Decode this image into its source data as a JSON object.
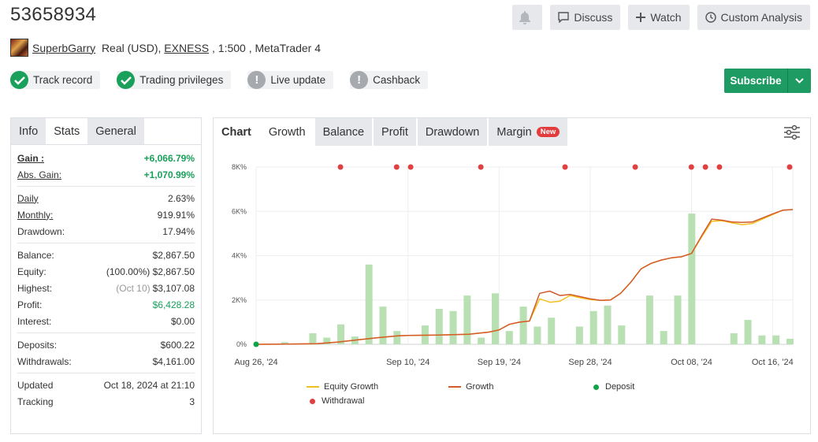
{
  "account": {
    "number": "53658934",
    "owner": "SuperbGarry",
    "type_prefix": "Real (USD), ",
    "broker": "EXNESS",
    "details": " , 1:500 , MetaTrader 4"
  },
  "top_actions": {
    "discuss": "Discuss",
    "watch": "Watch",
    "custom_analysis": "Custom Analysis"
  },
  "badges": [
    {
      "label": "Track record",
      "state": "verified"
    },
    {
      "label": "Trading privileges",
      "state": "verified"
    },
    {
      "label": "Live update",
      "state": "warning"
    },
    {
      "label": "Cashback",
      "state": "warning"
    }
  ],
  "subscribe": {
    "label": "Subscribe"
  },
  "stats_tabs": [
    "Info",
    "Stats",
    "General"
  ],
  "stats": {
    "gain": {
      "label": "Gain :",
      "value": "+6,066.79%"
    },
    "abs_gain": {
      "label": "Abs. Gain:",
      "value": "+1,070.99%"
    },
    "daily": {
      "label": "Daily",
      "value": "2.63%"
    },
    "monthly": {
      "label": "Monthly:",
      "value": "919.91%"
    },
    "drawdown": {
      "label": "Drawdown:",
      "value": "17.94%"
    },
    "balance": {
      "label": "Balance:",
      "value": "$2,867.50"
    },
    "equity": {
      "label": "Equity:",
      "note": "(100.00%)",
      "value": "$2,867.50"
    },
    "highest": {
      "label": "Highest:",
      "note": "(Oct 10)",
      "value": "$3,107.08"
    },
    "profit": {
      "label": "Profit:",
      "value": "$6,428.28"
    },
    "interest": {
      "label": "Interest:",
      "value": "$0.00"
    },
    "deposits": {
      "label": "Deposits:",
      "value": "$600.22"
    },
    "withdrawals": {
      "label": "Withdrawals:",
      "value": "$4,161.00"
    },
    "updated": {
      "label": "Updated",
      "value": "Oct 18, 2024 at 21:10"
    },
    "tracking": {
      "label": "Tracking",
      "value": "3"
    }
  },
  "chart_tabs": [
    {
      "label": "Chart",
      "style": "bold"
    },
    {
      "label": "Growth",
      "style": "active"
    },
    {
      "label": "Balance",
      "style": "grey"
    },
    {
      "label": "Profit",
      "style": "grey"
    },
    {
      "label": "Drawdown",
      "style": "grey"
    },
    {
      "label": "Margin",
      "style": "grey",
      "badge": "New"
    }
  ],
  "colors": {
    "green": "#19a05a",
    "subscribe": "#1e9b63",
    "growth_line": "#d35a2a",
    "equity_line": "#f2c01e",
    "bar": "#b8e0b3",
    "withdrawal": "#e04040",
    "deposit": "#12a34a"
  },
  "chart_data": {
    "type": "line",
    "y_ticks": [
      "0%",
      "2K%",
      "4K%",
      "6K%",
      "8K%"
    ],
    "ylim": [
      0,
      8000
    ],
    "x_ticks": [
      "Aug 26, '24",
      "Sep 10, '24",
      "Sep 19, '24",
      "Sep 28, '24",
      "Oct 08, '24",
      "Oct 16, '24"
    ],
    "x_tick_days": [
      0,
      15,
      24,
      33,
      43,
      51
    ],
    "xlim": [
      0,
      53
    ],
    "series": [
      {
        "name": "Equity Growth",
        "points": [
          [
            0,
            0
          ],
          [
            3,
            10
          ],
          [
            6,
            30
          ],
          [
            8,
            100
          ],
          [
            10,
            200
          ],
          [
            12,
            300
          ],
          [
            14,
            380
          ],
          [
            15,
            400
          ],
          [
            18,
            420
          ],
          [
            21,
            450
          ],
          [
            23,
            550
          ],
          [
            24,
            650
          ],
          [
            25,
            900
          ],
          [
            26,
            1000
          ],
          [
            27,
            1050
          ],
          [
            28,
            2050
          ],
          [
            29,
            1900
          ],
          [
            30,
            1950
          ],
          [
            31,
            2200
          ],
          [
            32,
            2100
          ],
          [
            33,
            2020
          ],
          [
            34,
            1980
          ],
          [
            35,
            2000
          ],
          [
            36,
            2300
          ],
          [
            37,
            2800
          ],
          [
            38,
            3400
          ],
          [
            39,
            3650
          ],
          [
            40,
            3800
          ],
          [
            41,
            3900
          ],
          [
            42,
            3950
          ],
          [
            43,
            4100
          ],
          [
            44,
            4850
          ],
          [
            45,
            5550
          ],
          [
            46,
            5580
          ],
          [
            47,
            5480
          ],
          [
            48,
            5400
          ],
          [
            49,
            5450
          ],
          [
            50,
            5650
          ],
          [
            51,
            5850
          ],
          [
            52,
            6050
          ],
          [
            53,
            6080
          ]
        ]
      },
      {
        "name": "Growth",
        "points": [
          [
            0,
            0
          ],
          [
            3,
            10
          ],
          [
            6,
            30
          ],
          [
            8,
            100
          ],
          [
            10,
            200
          ],
          [
            12,
            300
          ],
          [
            14,
            380
          ],
          [
            15,
            400
          ],
          [
            18,
            420
          ],
          [
            21,
            450
          ],
          [
            23,
            550
          ],
          [
            24,
            650
          ],
          [
            25,
            900
          ],
          [
            26,
            1000
          ],
          [
            27,
            1050
          ],
          [
            28,
            2300
          ],
          [
            29,
            2400
          ],
          [
            30,
            2200
          ],
          [
            31,
            2250
          ],
          [
            32,
            2150
          ],
          [
            33,
            2050
          ],
          [
            34,
            1980
          ],
          [
            35,
            2000
          ],
          [
            36,
            2300
          ],
          [
            37,
            2800
          ],
          [
            38,
            3400
          ],
          [
            39,
            3650
          ],
          [
            40,
            3800
          ],
          [
            41,
            3900
          ],
          [
            42,
            3950
          ],
          [
            43,
            4100
          ],
          [
            44,
            4900
          ],
          [
            45,
            5650
          ],
          [
            46,
            5600
          ],
          [
            47,
            5520
          ],
          [
            48,
            5500
          ],
          [
            49,
            5520
          ],
          [
            50,
            5700
          ],
          [
            51,
            5880
          ],
          [
            52,
            6050
          ],
          [
            53,
            6080
          ]
        ]
      }
    ],
    "bars_name": "Daily profit",
    "bars": [
      [
        1,
        0.1
      ],
      [
        3,
        0.5
      ],
      [
        4,
        0.3
      ],
      [
        5,
        0.9
      ],
      [
        6,
        0.35
      ],
      [
        7,
        3.6
      ],
      [
        8,
        1.7
      ],
      [
        9,
        0.6
      ],
      [
        11,
        0.85
      ],
      [
        12,
        1.6
      ],
      [
        13,
        1.5
      ],
      [
        14,
        2.2
      ],
      [
        15,
        0.3
      ],
      [
        16,
        2.3
      ],
      [
        17,
        0.6
      ],
      [
        18,
        1.7
      ],
      [
        19,
        0.8
      ],
      [
        20,
        1.2
      ],
      [
        22,
        0.8
      ],
      [
        23,
        1.5
      ],
      [
        24,
        1.75
      ],
      [
        25,
        0.85
      ],
      [
        27,
        2.2
      ],
      [
        28,
        0.6
      ],
      [
        29,
        2.2
      ],
      [
        30,
        5.9
      ],
      [
        33,
        0.5
      ],
      [
        34,
        1.1
      ],
      [
        35,
        0.4
      ],
      [
        36,
        0.4
      ],
      [
        37,
        0.25
      ]
    ],
    "withdrawals": [
      5,
      9,
      10,
      15,
      21,
      26,
      30,
      31,
      32,
      37
    ],
    "deposits": [
      0
    ],
    "legend": [
      "Equity Growth",
      "Growth",
      "Deposit",
      "Withdrawal"
    ]
  }
}
